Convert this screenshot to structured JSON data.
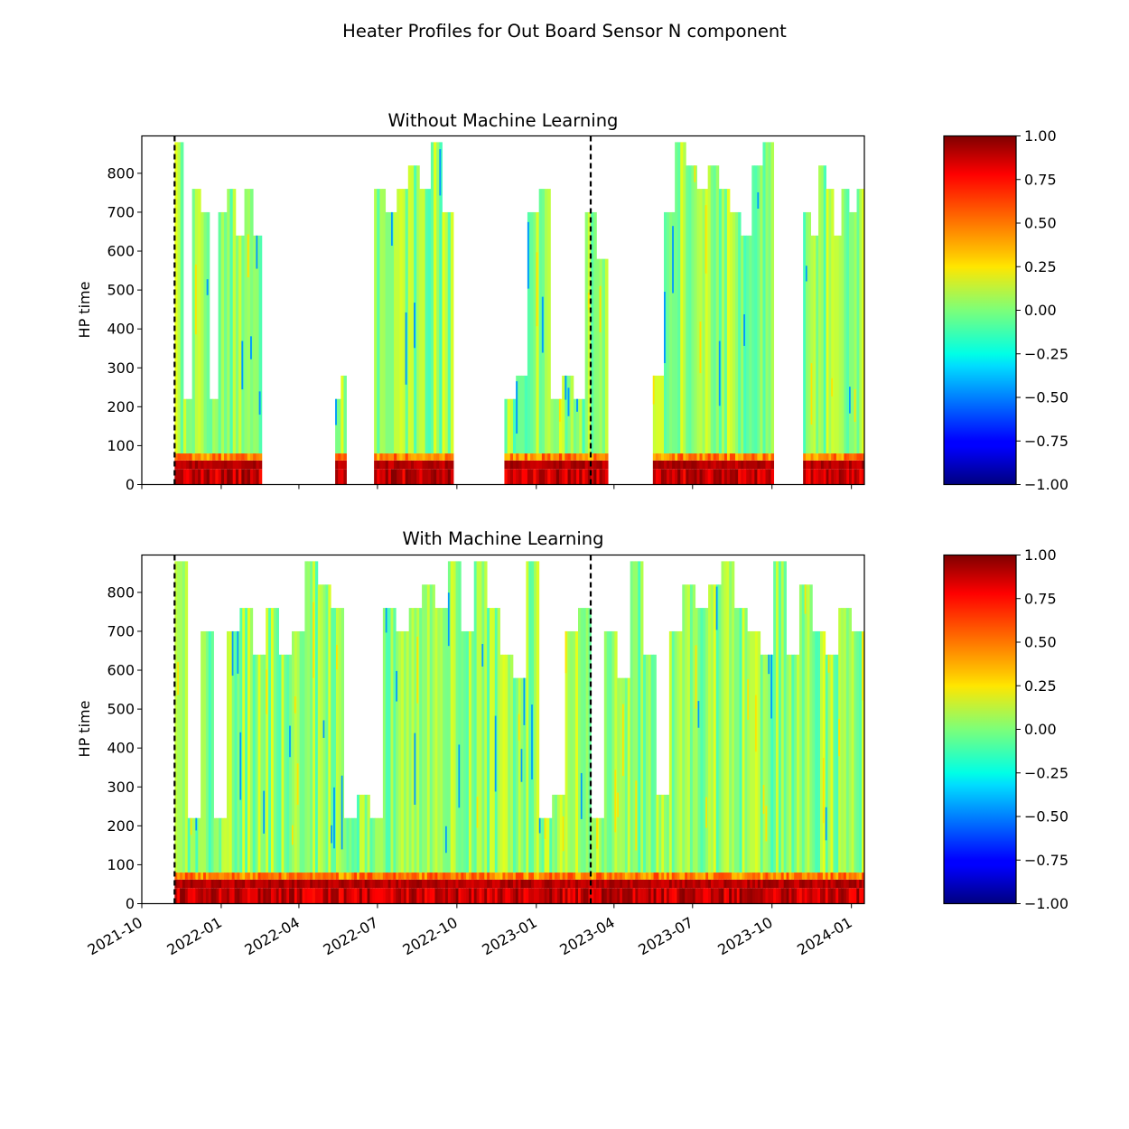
{
  "figure_title": "Heater Profiles for Out Board Sensor N component",
  "colormap": "jet",
  "chart_data": [
    {
      "type": "heatmap",
      "title": "Without Machine Learning",
      "ylabel": "HP time",
      "xlabel": "",
      "x_type": "date",
      "xlim": [
        "2021-10-01",
        "2024-01-16"
      ],
      "ylim": [
        0,
        896
      ],
      "xticks": [
        "2021-10-01",
        "2022-01-01",
        "2022-04-01",
        "2022-07-01",
        "2022-10-01",
        "2023-01-01",
        "2023-04-01",
        "2023-07-01",
        "2023-10-01",
        "2024-01-01"
      ],
      "xtick_labels": [],
      "yticks": [
        0,
        100,
        200,
        300,
        400,
        500,
        600,
        700,
        800
      ],
      "vlines": [
        "2021-11-08",
        "2023-03-05"
      ],
      "clim": [
        -1,
        1
      ],
      "colorbar_ticks": [
        "1.00",
        "0.75",
        "0.50",
        "0.25",
        "0.00",
        "−0.25",
        "−0.50",
        "−0.75",
        "−1.00"
      ],
      "data_blocks": [
        {
          "start": "2021-11-08",
          "end": "2022-02-17",
          "tops": [
            880,
            220,
            760,
            700,
            220,
            700,
            760,
            640,
            760,
            640
          ]
        },
        {
          "start": "2022-05-13",
          "end": "2022-05-26",
          "tops": [
            220,
            280
          ]
        },
        {
          "start": "2022-06-27",
          "end": "2022-09-27",
          "tops": [
            760,
            700,
            760,
            820,
            760,
            880,
            700
          ]
        },
        {
          "start": "2022-11-25",
          "end": "2023-03-25",
          "tops": [
            220,
            280,
            700,
            760,
            220,
            280,
            220,
            700,
            580
          ]
        },
        {
          "start": "2023-05-16",
          "end": "2023-10-03",
          "tops": [
            280,
            700,
            880,
            820,
            760,
            820,
            760,
            700,
            640,
            820,
            880
          ]
        },
        {
          "start": "2023-11-06",
          "end": "2024-01-16",
          "tops": [
            700,
            640,
            820,
            760,
            640,
            760,
            700,
            760
          ]
        }
      ]
    },
    {
      "type": "heatmap",
      "title": "With Machine Learning",
      "ylabel": "HP time",
      "xlabel": "",
      "x_type": "date",
      "xlim": [
        "2021-10-01",
        "2024-01-16"
      ],
      "ylim": [
        0,
        896
      ],
      "xticks": [
        "2021-10-01",
        "2022-01-01",
        "2022-04-01",
        "2022-07-01",
        "2022-10-01",
        "2023-01-01",
        "2023-04-01",
        "2023-07-01",
        "2023-10-01",
        "2024-01-01"
      ],
      "xtick_labels": [
        "2021-10",
        "2022-01",
        "2022-04",
        "2022-07",
        "2022-10",
        "2023-01",
        "2023-04",
        "2023-07",
        "2023-10",
        "2024-01"
      ],
      "yticks": [
        0,
        100,
        200,
        300,
        400,
        500,
        600,
        700,
        800
      ],
      "vlines": [
        "2021-11-08",
        "2023-03-05"
      ],
      "clim": [
        -1,
        1
      ],
      "colorbar_ticks": [
        "1.00",
        "0.75",
        "0.50",
        "0.25",
        "0.00",
        "−0.25",
        "−0.50",
        "−0.75",
        "−1.00"
      ],
      "data_blocks": [
        {
          "start": "2021-11-08",
          "end": "2024-01-16",
          "tops": [
            880,
            220,
            700,
            220,
            700,
            760,
            640,
            760,
            640,
            700,
            880,
            820,
            760,
            220,
            280,
            220,
            760,
            700,
            760,
            820,
            760,
            880,
            700,
            880,
            760,
            640,
            580,
            880,
            220,
            280,
            700,
            760,
            220,
            700,
            580,
            880,
            640,
            280,
            700,
            820,
            760,
            820,
            880,
            760,
            700,
            640,
            880,
            640,
            820,
            700,
            640,
            760,
            700
          ]
        }
      ]
    }
  ]
}
